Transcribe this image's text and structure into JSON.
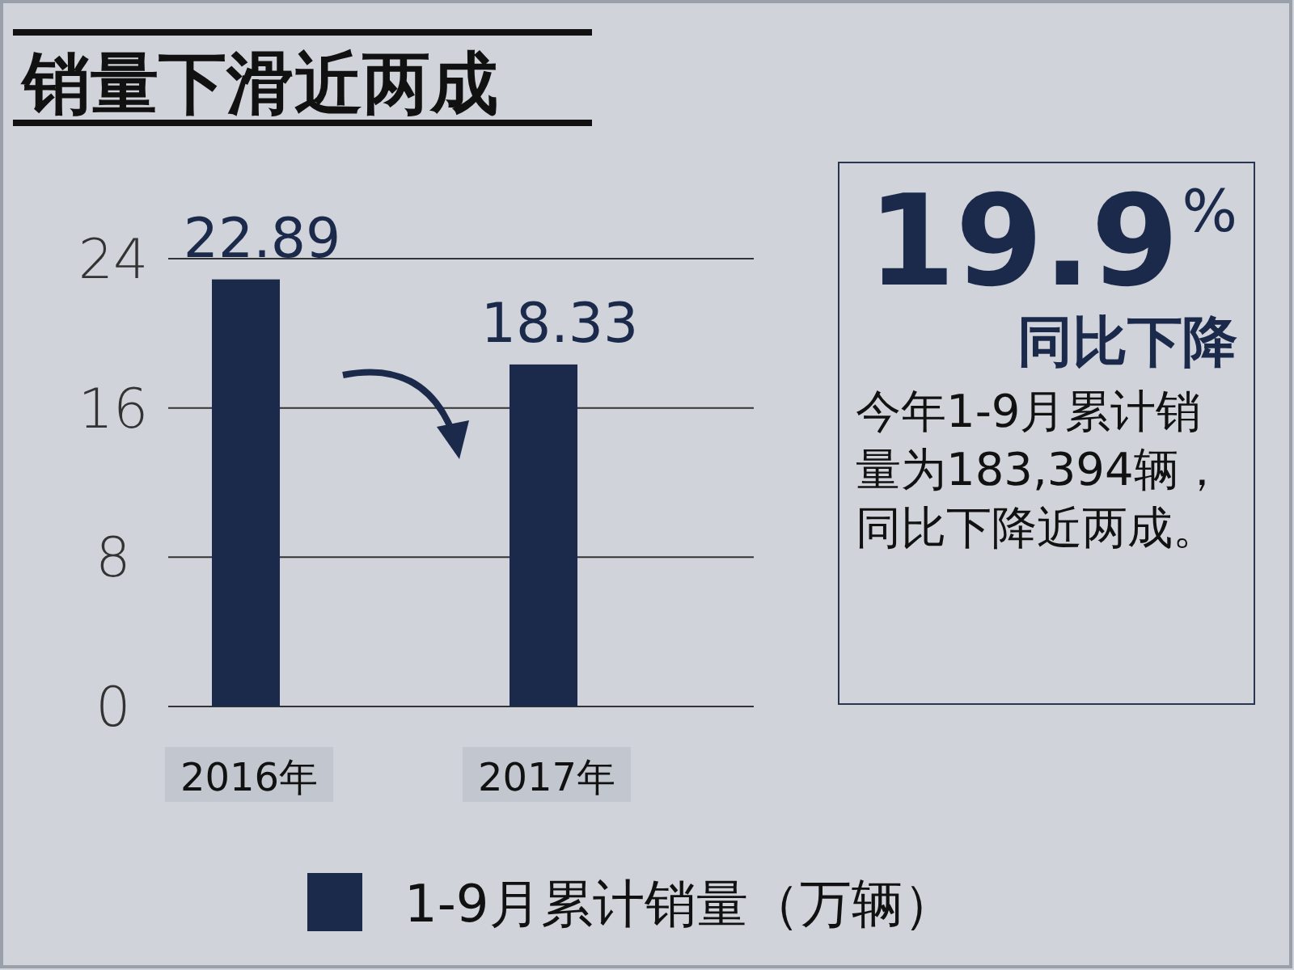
{
  "chart_data": [
    {
      "type": "bar",
      "title": "销量下滑近两成",
      "categories": [
        "2016年",
        "2017年"
      ],
      "series": [
        {
          "name": "1-9月累计销量（万辆）",
          "color": "#1b2a4a",
          "values": [
            22.89,
            18.33
          ]
        }
      ],
      "ylim": [
        0,
        24
      ],
      "yticks": [
        0,
        8,
        16,
        24
      ],
      "grid": "y",
      "data_labels": true,
      "legend": "bottom"
    },
    {
      "type": "other",
      "title": "19.9$^{%}$",
      "subtitle": "同比下降",
      "annotations": [
        "今年1-9月累计销量为183,394辆，同比下降近两成。"
      ]
    }
  ]
}
